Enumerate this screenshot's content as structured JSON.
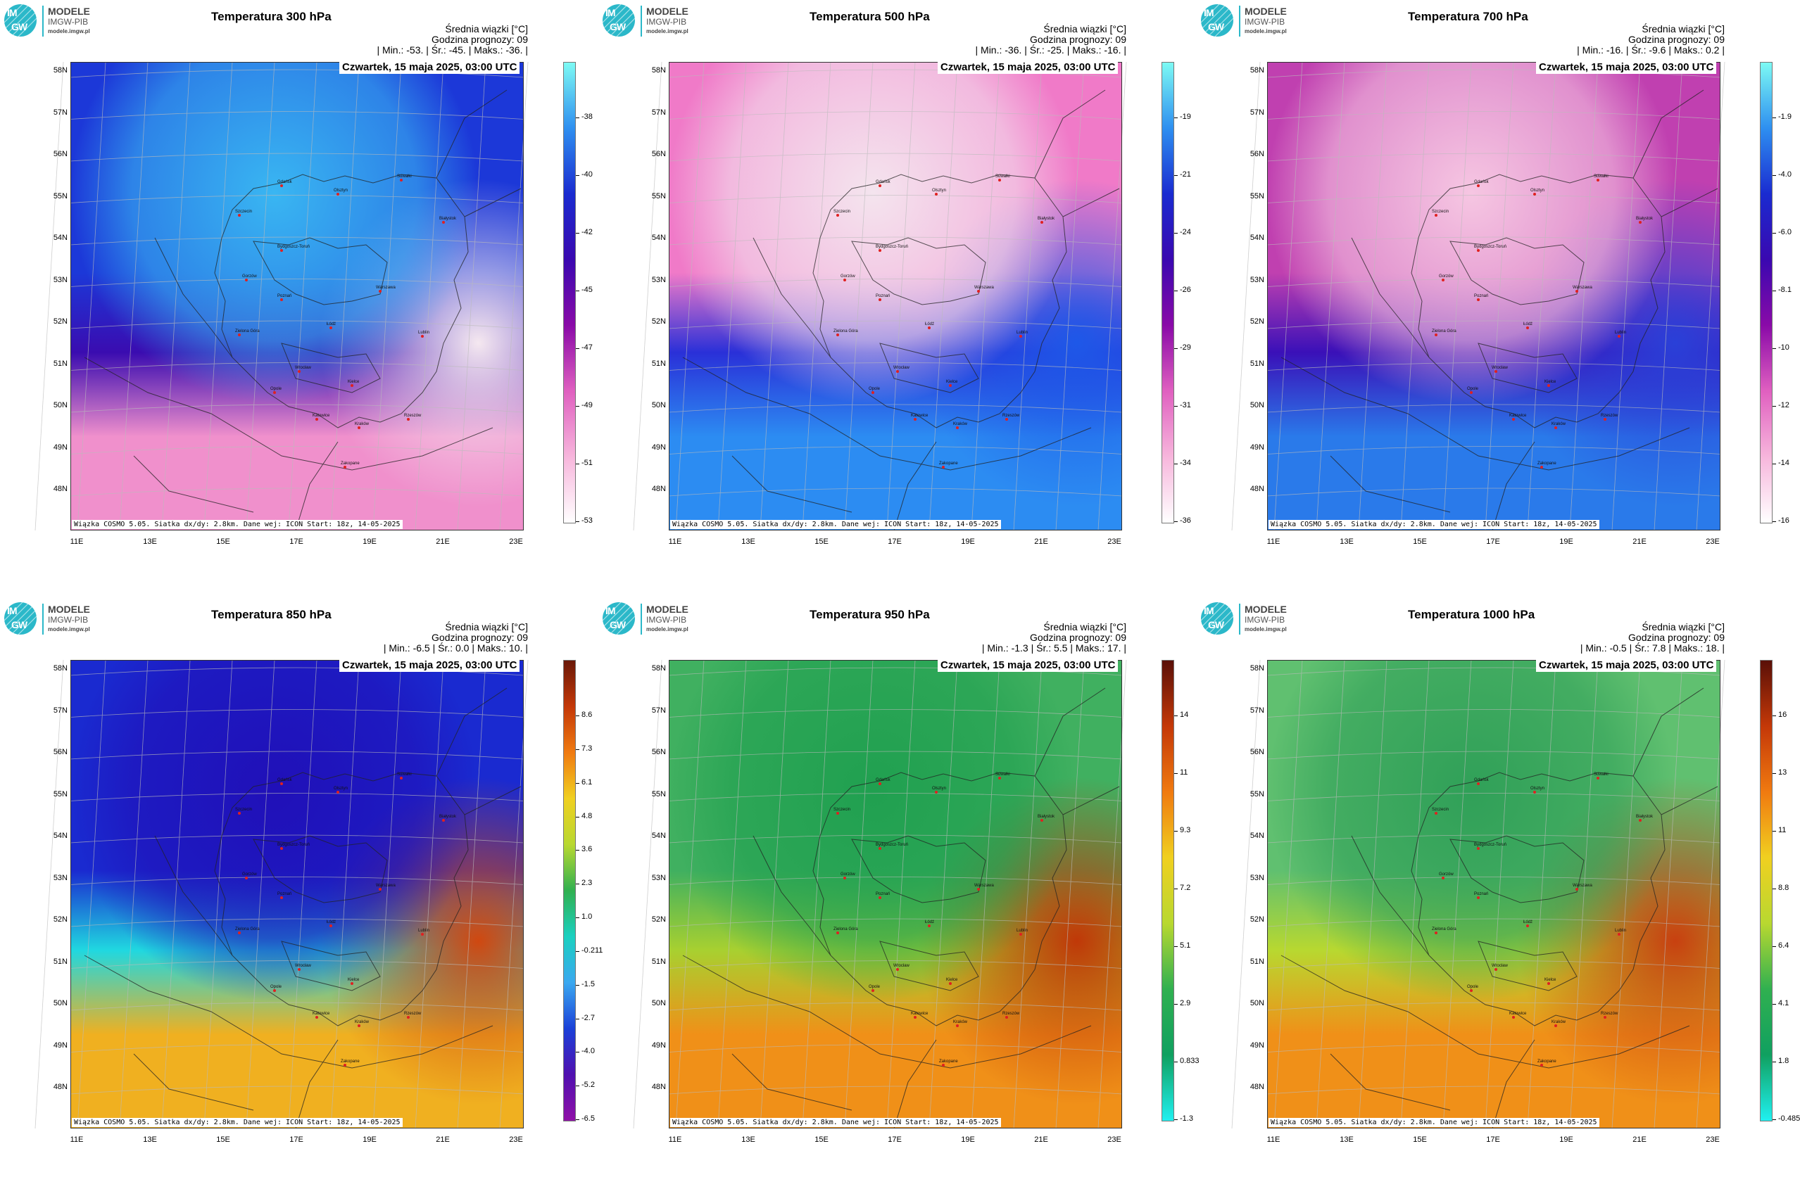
{
  "panels": [
    {
      "logo": {
        "line1": "MODELE",
        "line2": "IMGW-PIB",
        "line3": "modele.imgw.pl",
        "mark1": "IM",
        "mark2": "GW"
      },
      "title": "Temperatura 300 hPa",
      "subtitle1": "Średnia wiązki [°C]",
      "subtitle2": "Godzina prognozy: 09",
      "stats": "| Min.: -53. | Śr.: -45. | Maks.: -36. |",
      "date": "Czwartek, 15 maja 2025, 03:00 UTC",
      "footer": "Wiązka COSMO 5.05. Siatka dx/dy: 2.8km. Dane wej: ICON Start: 18z, 14-05-2025",
      "colorbar_ticks": [
        "-38",
        "-40",
        "-42",
        "-45",
        "-47",
        "-49",
        "-51",
        "-53"
      ],
      "colorbar_colors": [
        "#7dfaf4",
        "#2e8ff0",
        "#1a2bd0",
        "#3a08b0",
        "#8a0aa8",
        "#e060c0",
        "#f7b6dc",
        "#ffffff"
      ],
      "field": {
        "north": "#1c38d8",
        "centre": "#39b6f2",
        "middle": "#3a0cb0",
        "south": "#f090cc",
        "southeast": "#f5e8f0"
      }
    },
    {
      "logo": {
        "line1": "MODELE",
        "line2": "IMGW-PIB",
        "line3": "modele.imgw.pl",
        "mark1": "IM",
        "mark2": "GW"
      },
      "title": "Temperatura 500 hPa",
      "subtitle1": "Średnia wiązki [°C]",
      "subtitle2": "Godzina prognozy: 09",
      "stats": "| Min.: -36. | Śr.: -25. | Maks.: -16. |",
      "date": "Czwartek, 15 maja 2025, 03:00 UTC",
      "footer": "Wiązka COSMO 5.05. Siatka dx/dy: 2.8km. Dane wej: ICON Start: 18z, 14-05-2025",
      "colorbar_ticks": [
        "-19",
        "-21",
        "-24",
        "-26",
        "-29",
        "-31",
        "-34",
        "-36"
      ],
      "colorbar_colors": [
        "#7dfaf4",
        "#2e8ff0",
        "#1a2bd0",
        "#3a08b0",
        "#8a0aa8",
        "#e060c0",
        "#f7b6dc",
        "#ffffff"
      ],
      "field": {
        "north": "#f07ac8",
        "centre": "#f4e4ee",
        "middle": "#2a30d8",
        "south": "#2c8cf2",
        "southeast": "#1e58e8"
      }
    },
    {
      "logo": {
        "line1": "MODELE",
        "line2": "IMGW-PIB",
        "line3": "modele.imgw.pl",
        "mark1": "IM",
        "mark2": "GW"
      },
      "title": "Temperatura 700 hPa",
      "subtitle1": "Średnia wiązki [°C]",
      "subtitle2": "Godzina prognozy: 09",
      "stats": "| Min.: -16. | Śr.: -9.6 | Maks.: 0.2 |",
      "date": "Czwartek, 15 maja 2025, 03:00 UTC",
      "footer": "Wiązka COSMO 5.05. Siatka dx/dy: 2.8km. Dane wej: ICON Start: 18z, 14-05-2025",
      "colorbar_ticks": [
        "-1.9",
        "-4.0",
        "-6.0",
        "-8.1",
        "-10",
        "-12",
        "-14",
        "-16"
      ],
      "colorbar_colors": [
        "#7dfaf4",
        "#2e8ff0",
        "#1a2bd0",
        "#3a08b0",
        "#8a0aa8",
        "#e060c0",
        "#f7b6dc",
        "#ffffff"
      ],
      "field": {
        "north": "#c040b0",
        "centre": "#f6c6e2",
        "middle": "#3a10b8",
        "south": "#2a7aea",
        "southeast": "#2a40d8"
      }
    },
    {
      "logo": {
        "line1": "MODELE",
        "line2": "IMGW-PIB",
        "line3": "modele.imgw.pl",
        "mark1": "IM",
        "mark2": "GW"
      },
      "title": "Temperatura 850 hPa",
      "subtitle1": "Średnia wiązki [°C]",
      "subtitle2": "Godzina prognozy: 09",
      "stats": "| Min.: -6.5 | Śr.: 0.0 | Maks.: 10. |",
      "date": "Czwartek, 15 maja 2025, 03:00 UTC",
      "footer": "Wiązka COSMO 5.05. Siatka dx/dy: 2.8km. Dane wej: ICON Start: 18z, 14-05-2025",
      "colorbar_ticks": [
        "8.6",
        "7.3",
        "6.1",
        "4.8",
        "3.6",
        "2.3",
        "1.0",
        "-0.211",
        "-1.5",
        "-2.7",
        "-4.0",
        "-5.2",
        "-6.5"
      ],
      "colorbar_colors": [
        "#6a1808",
        "#c43808",
        "#f07a10",
        "#f0d020",
        "#b8d830",
        "#30b050",
        "#1ad0c0",
        "#3aa8f0",
        "#1a40d8",
        "#5010b0",
        "#9010a8"
      ],
      "field": {
        "north": "#1a2ad0",
        "centre": "#2010b8",
        "middle": "#20d8e0",
        "south": "#f0b020",
        "southeast": "#d04810"
      }
    },
    {
      "logo": {
        "line1": "MODELE",
        "line2": "IMGW-PIB",
        "line3": "modele.imgw.pl",
        "mark1": "IM",
        "mark2": "GW"
      },
      "title": "Temperatura 950 hPa",
      "subtitle1": "Średnia wiązki [°C]",
      "subtitle2": "Godzina prognozy: 09",
      "stats": "| Min.: -1.3 | Śr.: 5.5 | Maks.: 17. |",
      "date": "Czwartek, 15 maja 2025, 03:00 UTC",
      "footer": "Wiązka COSMO 5.05. Siatka dx/dy: 2.8km. Dane wej: ICON Start: 18z, 14-05-2025",
      "colorbar_ticks": [
        "14",
        "11",
        "9.3",
        "7.2",
        "5.1",
        "2.9",
        "0.833",
        "-1.3"
      ],
      "colorbar_colors": [
        "#5a1008",
        "#c43808",
        "#f07a10",
        "#f0d020",
        "#b8d830",
        "#30b050",
        "#10a060",
        "#20f0f0"
      ],
      "field": {
        "north": "#40b060",
        "centre": "#20a050",
        "middle": "#a8d030",
        "south": "#f09018",
        "southeast": "#c03808"
      }
    },
    {
      "logo": {
        "line1": "MODELE",
        "line2": "IMGW-PIB",
        "line3": "modele.imgw.pl",
        "mark1": "IM",
        "mark2": "GW"
      },
      "title": "Temperatura 1000 hPa",
      "subtitle1": "Średnia wiązki [°C]",
      "subtitle2": "Godzina prognozy: 09",
      "stats": "| Min.: -0.5 | Śr.: 7.8 | Maks.: 18. |",
      "date": "Czwartek, 15 maja 2025, 03:00 UTC",
      "footer": "Wiązka COSMO 5.05. Siatka dx/dy: 2.8km. Dane wej: ICON Start: 18z, 14-05-2025",
      "colorbar_ticks": [
        "16",
        "13",
        "11",
        "8.8",
        "6.4",
        "4.1",
        "1.8",
        "-0.485"
      ],
      "colorbar_colors": [
        "#5a1008",
        "#c43808",
        "#f07a10",
        "#f0d020",
        "#b8d830",
        "#30b050",
        "#10a060",
        "#20f0f0"
      ],
      "field": {
        "north": "#60c070",
        "centre": "#30a058",
        "middle": "#b8d830",
        "south": "#f09018",
        "southeast": "#c84010"
      }
    }
  ],
  "lat_labels": [
    "58N",
    "57N",
    "56N",
    "55N",
    "54N",
    "53N",
    "52N",
    "51N",
    "50N",
    "49N",
    "48N"
  ],
  "lon_labels": [
    "11E",
    "13E",
    "15E",
    "17E",
    "19E",
    "21E",
    "23E"
  ],
  "cities": [
    "Gdańsk",
    "Olsztyn",
    "Suwałki",
    "Białystok",
    "Szczecin",
    "Bydgoszcz-Toruń",
    "Gorzów",
    "Poznań",
    "Warszawa",
    "Zielona Góra",
    "Łódź",
    "Lublin",
    "Wrocław",
    "Opole",
    "Kielce",
    "Katowice",
    "Kraków",
    "Rzeszów",
    "Zakopane"
  ],
  "city_marker_color": "#e02020"
}
